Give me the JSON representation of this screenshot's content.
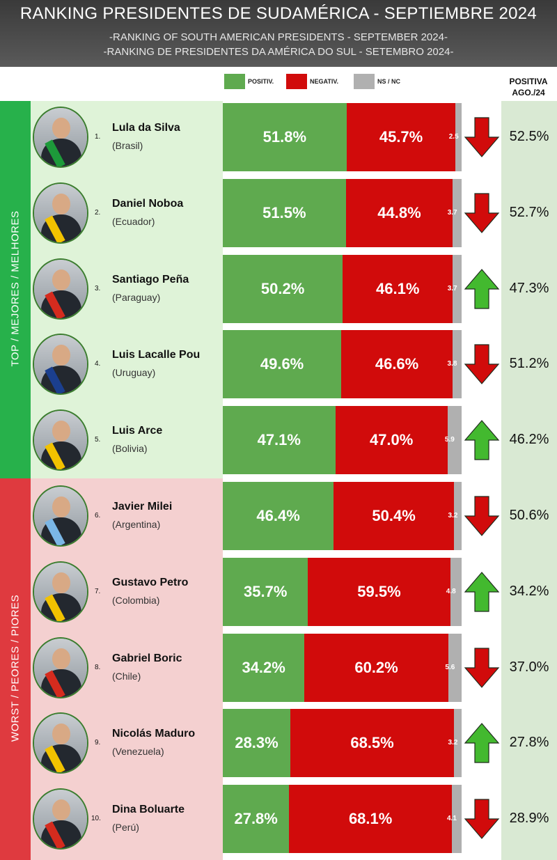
{
  "header": {
    "title": "RANKING PRESIDENTES DE SUDAMÉRICA - SEPTIEMBRE 2024",
    "subtitle_en": "-RANKING OF SOUTH AMERICAN PRESIDENTS - SEPTEMBER 2024-",
    "subtitle_pt": "-RANKING DE PRESIDENTES DA AMÉRICA DO SUL - SETEMBRO 2024-"
  },
  "legend": [
    {
      "label": "POSITIV.",
      "color": "#5faa4f"
    },
    {
      "label": "NEGATIV.",
      "color": "#d10b0b"
    },
    {
      "label": "NS / NC",
      "color": "#b0b0b0"
    }
  ],
  "prev_header": {
    "line1": "POSITIVA",
    "line2": "AGO./24"
  },
  "groups": {
    "top": "TOP / MEJORES / MELHORES",
    "worst": "WORST / PEORES / PIORES"
  },
  "colors": {
    "positive": "#5faa4f",
    "negative": "#d10b0b",
    "nsnc": "#b0b0b0",
    "arrow_up": "#43b92f",
    "arrow_down": "#d10b0b"
  },
  "chart_data": {
    "type": "bar",
    "stacked": true,
    "orientation": "horizontal",
    "categories": [
      "Lula da Silva",
      "Daniel Noboa",
      "Santiago Peña",
      "Luis Lacalle Pou",
      "Luis Arce",
      "Javier Milei",
      "Gustavo Petro",
      "Gabriel Boric",
      "Nicolás Maduro",
      "Dina Boluarte"
    ],
    "series": [
      {
        "name": "POSITIV.",
        "values": [
          51.8,
          51.5,
          50.2,
          49.6,
          47.1,
          46.4,
          35.7,
          34.2,
          28.3,
          27.8
        ]
      },
      {
        "name": "NEGATIV.",
        "values": [
          45.7,
          44.8,
          46.1,
          46.6,
          47.0,
          50.4,
          59.5,
          60.2,
          68.5,
          68.1
        ]
      },
      {
        "name": "NS / NC",
        "values": [
          2.5,
          3.7,
          3.7,
          3.8,
          5.9,
          3.2,
          4.8,
          5.6,
          3.2,
          4.1
        ]
      }
    ],
    "previous_positive": [
      52.5,
      52.7,
      47.3,
      51.2,
      46.2,
      50.6,
      34.2,
      37.0,
      27.8,
      28.9
    ]
  },
  "presidents": [
    {
      "rank": "1.",
      "name": "Lula da Silva",
      "country": "(Brasil)",
      "pos_label": "51.8%",
      "neg_label": "45.7%",
      "ns_label": "2.5",
      "trend": "down",
      "prev_label": "52.5%",
      "sash": "#1d9a3a"
    },
    {
      "rank": "2.",
      "name": "Daniel Noboa",
      "country": "(Ecuador)",
      "pos_label": "51.5%",
      "neg_label": "44.8%",
      "ns_label": "3.7",
      "trend": "down",
      "prev_label": "52.7%",
      "sash": "#f2c200"
    },
    {
      "rank": "3.",
      "name": "Santiago Peña",
      "country": "(Paraguay)",
      "pos_label": "50.2%",
      "neg_label": "46.1%",
      "ns_label": "3.7",
      "trend": "up",
      "prev_label": "47.3%",
      "sash": "#d52b1e"
    },
    {
      "rank": "4.",
      "name": "Luis Lacalle Pou",
      "country": "(Uruguay)",
      "pos_label": "49.6%",
      "neg_label": "46.6%",
      "ns_label": "3.8",
      "trend": "down",
      "prev_label": "51.2%",
      "sash": "#1b3f8f"
    },
    {
      "rank": "5.",
      "name": "Luis Arce",
      "country": "(Bolivia)",
      "pos_label": "47.1%",
      "neg_label": "47.0%",
      "ns_label": "5.9",
      "trend": "up",
      "prev_label": "46.2%",
      "sash": "#f2c200"
    },
    {
      "rank": "6.",
      "name": "Javier Milei",
      "country": "(Argentina)",
      "pos_label": "46.4%",
      "neg_label": "50.4%",
      "ns_label": "3.2",
      "trend": "down",
      "prev_label": "50.6%",
      "sash": "#7bb7e6"
    },
    {
      "rank": "7.",
      "name": "Gustavo Petro",
      "country": "(Colombia)",
      "pos_label": "35.7%",
      "neg_label": "59.5%",
      "ns_label": "4.8",
      "trend": "up",
      "prev_label": "34.2%",
      "sash": "#f2c200"
    },
    {
      "rank": "8.",
      "name": "Gabriel Boric",
      "country": "(Chile)",
      "pos_label": "34.2%",
      "neg_label": "60.2%",
      "ns_label": "5.6",
      "trend": "down",
      "prev_label": "37.0%",
      "sash": "#d52b1e"
    },
    {
      "rank": "9.",
      "name": "Nicolás Maduro",
      "country": "(Venezuela)",
      "pos_label": "28.3%",
      "neg_label": "68.5%",
      "ns_label": "3.2",
      "trend": "up",
      "prev_label": "27.8%",
      "sash": "#f2c200"
    },
    {
      "rank": "10.",
      "name": "Dina Boluarte",
      "country": "(Perú)",
      "pos_label": "27.8%",
      "neg_label": "68.1%",
      "ns_label": "4.1",
      "trend": "down",
      "prev_label": "28.9%",
      "sash": "#d52b1e"
    }
  ]
}
